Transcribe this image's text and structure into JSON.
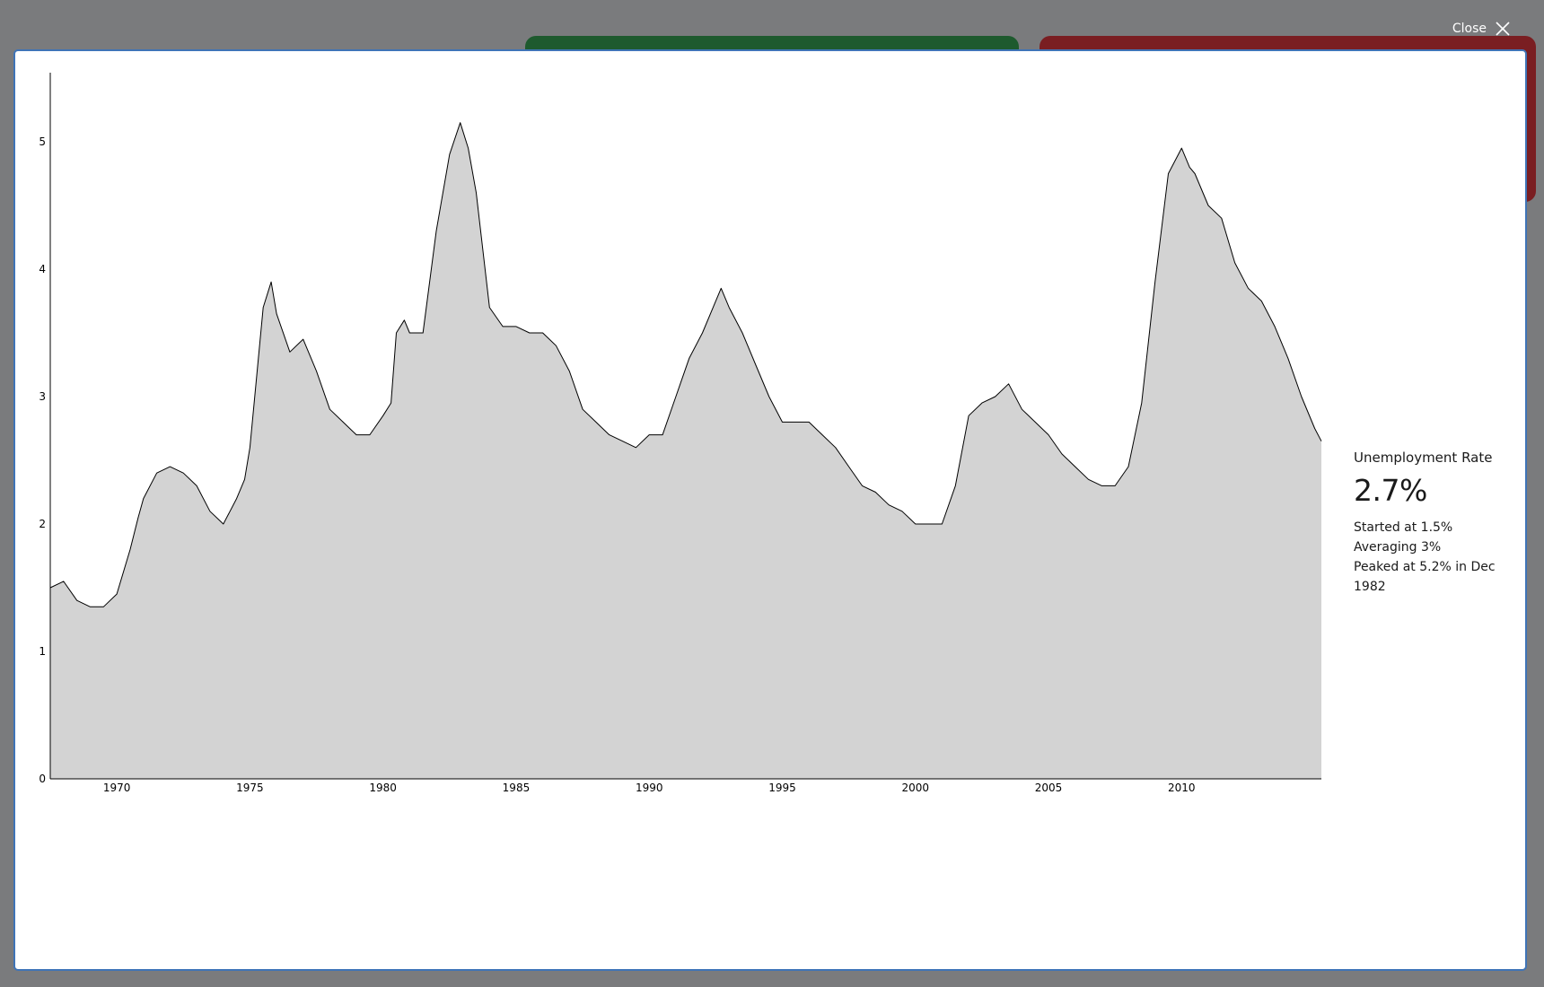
{
  "header": {
    "close_label": "Close"
  },
  "icons": {
    "close": "close-icon"
  },
  "summary": {
    "title": "Unemployment Rate",
    "current": "2.7%",
    "started": "Started at 1.5%",
    "average": "Averaging 3%",
    "peak": "Peaked at 5.2% in Dec 1982"
  },
  "chart_data": {
    "type": "area",
    "title": "",
    "xlabel": "",
    "ylabel": "",
    "xlim": [
      1967.5,
      2015.25
    ],
    "ylim": [
      0,
      5.5
    ],
    "yticks": [
      "0",
      "1",
      "2",
      "3",
      "4",
      "5"
    ],
    "xticks": [
      "1970",
      "1975",
      "1980",
      "1985",
      "1990",
      "1995",
      "2000",
      "2005",
      "2010"
    ],
    "grid": false,
    "fill_color": "#d3d3d3",
    "line_color": "#000000",
    "series": [
      {
        "x": [
          1967.5,
          1968,
          1968.5,
          1969,
          1969.5,
          1970,
          1970.5,
          1970.8,
          1971,
          1971.5,
          1972,
          1972.5,
          1973,
          1973.5,
          1974,
          1974.5,
          1974.8,
          1975,
          1975.5,
          1975.8,
          1976,
          1976.5,
          1977,
          1977.5,
          1978,
          1978.5,
          1979,
          1979.5,
          1980,
          1980.3,
          1980.5,
          1980.8,
          1981,
          1981.5,
          1982,
          1982.5,
          1982.9,
          1983.2,
          1983.5,
          1984,
          1984.5,
          1985,
          1985.5,
          1986,
          1986.5,
          1987,
          1987.5,
          1988,
          1988.5,
          1989,
          1989.5,
          1990,
          1990.5,
          1991,
          1991.5,
          1992,
          1992.4,
          1992.7,
          1993,
          1993.5,
          1994,
          1994.5,
          1995,
          1995.5,
          1996,
          1996.5,
          1997,
          1997.5,
          1998,
          1998.5,
          1999,
          1999.5,
          2000,
          2000.5,
          2001,
          2001.5,
          2002,
          2002.5,
          2003,
          2003.5,
          2004,
          2004.5,
          2005,
          2005.5,
          2006,
          2006.5,
          2007,
          2007.5,
          2008,
          2008.5,
          2009,
          2009.5,
          2010,
          2010.3,
          2010.5,
          2011,
          2011.5,
          2012,
          2012.5,
          2013,
          2013.5,
          2014,
          2014.5,
          2015,
          2015.25
        ],
        "y": [
          1.5,
          1.55,
          1.4,
          1.35,
          1.35,
          1.45,
          1.8,
          2.05,
          2.2,
          2.4,
          2.45,
          2.4,
          2.3,
          2.1,
          2.0,
          2.2,
          2.35,
          2.6,
          3.7,
          3.9,
          3.65,
          3.35,
          3.45,
          3.2,
          2.9,
          2.8,
          2.7,
          2.7,
          2.85,
          2.95,
          3.5,
          3.6,
          3.5,
          3.5,
          4.3,
          4.9,
          5.15,
          4.95,
          4.6,
          3.7,
          3.55,
          3.55,
          3.5,
          3.5,
          3.4,
          3.2,
          2.9,
          2.8,
          2.7,
          2.65,
          2.6,
          2.7,
          2.7,
          3.0,
          3.3,
          3.5,
          3.7,
          3.85,
          3.7,
          3.5,
          3.25,
          3.0,
          2.8,
          2.8,
          2.8,
          2.7,
          2.6,
          2.45,
          2.3,
          2.25,
          2.15,
          2.1,
          2.0,
          2.0,
          2.0,
          2.3,
          2.85,
          2.95,
          3.0,
          3.1,
          2.9,
          2.8,
          2.7,
          2.55,
          2.45,
          2.35,
          2.3,
          2.3,
          2.45,
          2.95,
          3.9,
          4.75,
          4.95,
          4.8,
          4.75,
          4.5,
          4.4,
          4.05,
          3.85,
          3.75,
          3.55,
          3.3,
          3.0,
          2.75,
          2.65
        ]
      }
    ]
  }
}
